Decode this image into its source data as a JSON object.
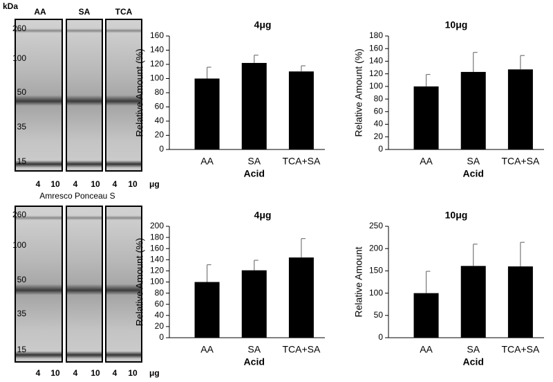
{
  "gels": [
    {
      "kda_label": "kDa",
      "lane_groups": [
        "AA",
        "SA",
        "TCA"
      ],
      "markers": [
        260,
        100,
        50,
        35,
        15
      ],
      "lanes": [
        4,
        10,
        4,
        10,
        4,
        10
      ],
      "unit": "μg"
    },
    {
      "caption": "Amresco Ponceau S",
      "markers": [
        260,
        100,
        50,
        35,
        15
      ],
      "lanes": [
        4,
        10,
        4,
        10,
        4,
        10
      ],
      "unit": "μg"
    }
  ],
  "chart_data": [
    {
      "type": "bar",
      "title": "4μg",
      "y_label": "Relative Amount (%)",
      "x_label": "Acid",
      "categories": [
        "AA",
        "SA",
        "TCA+SA"
      ],
      "series": [
        {
          "color": "#000000",
          "values": [
            100,
            122,
            110
          ],
          "errors": [
            16,
            11,
            8
          ]
        }
      ],
      "ylim": [
        0,
        160
      ],
      "yticks": [
        0,
        20,
        40,
        60,
        80,
        100,
        120,
        140,
        160
      ]
    },
    {
      "type": "bar",
      "title": "10μg",
      "y_label": "Relative Amount (%)",
      "x_label": "Acid",
      "categories": [
        "AA",
        "SA",
        "TCA+SA"
      ],
      "series": [
        {
          "color": "#000000",
          "values": [
            100,
            123,
            127
          ],
          "errors": [
            19,
            31,
            22
          ]
        }
      ],
      "ylim": [
        0,
        180
      ],
      "yticks": [
        0,
        20,
        40,
        60,
        80,
        100,
        120,
        140,
        160,
        180
      ]
    },
    {
      "type": "bar",
      "title": "4μg",
      "y_label": "Relative Amount (%)",
      "x_label": "Acid",
      "categories": [
        "AA",
        "SA",
        "TCA+SA"
      ],
      "series": [
        {
          "color": "#000000",
          "values": [
            100,
            121,
            144
          ],
          "errors": [
            31,
            18,
            34
          ]
        }
      ],
      "ylim": [
        0,
        200
      ],
      "yticks": [
        0,
        20,
        40,
        60,
        80,
        100,
        120,
        140,
        160,
        180,
        200
      ]
    },
    {
      "type": "bar",
      "title": "10μg",
      "y_label": "Relative Amount",
      "x_label": "Acid",
      "categories": [
        "AA",
        "SA",
        "TCA+SA"
      ],
      "series": [
        {
          "color": "#000000",
          "values": [
            100,
            161,
            160
          ],
          "errors": [
            49,
            49,
            54
          ]
        }
      ],
      "ylim": [
        0,
        250
      ],
      "yticks": [
        0,
        50,
        100,
        150,
        200,
        250
      ]
    }
  ]
}
